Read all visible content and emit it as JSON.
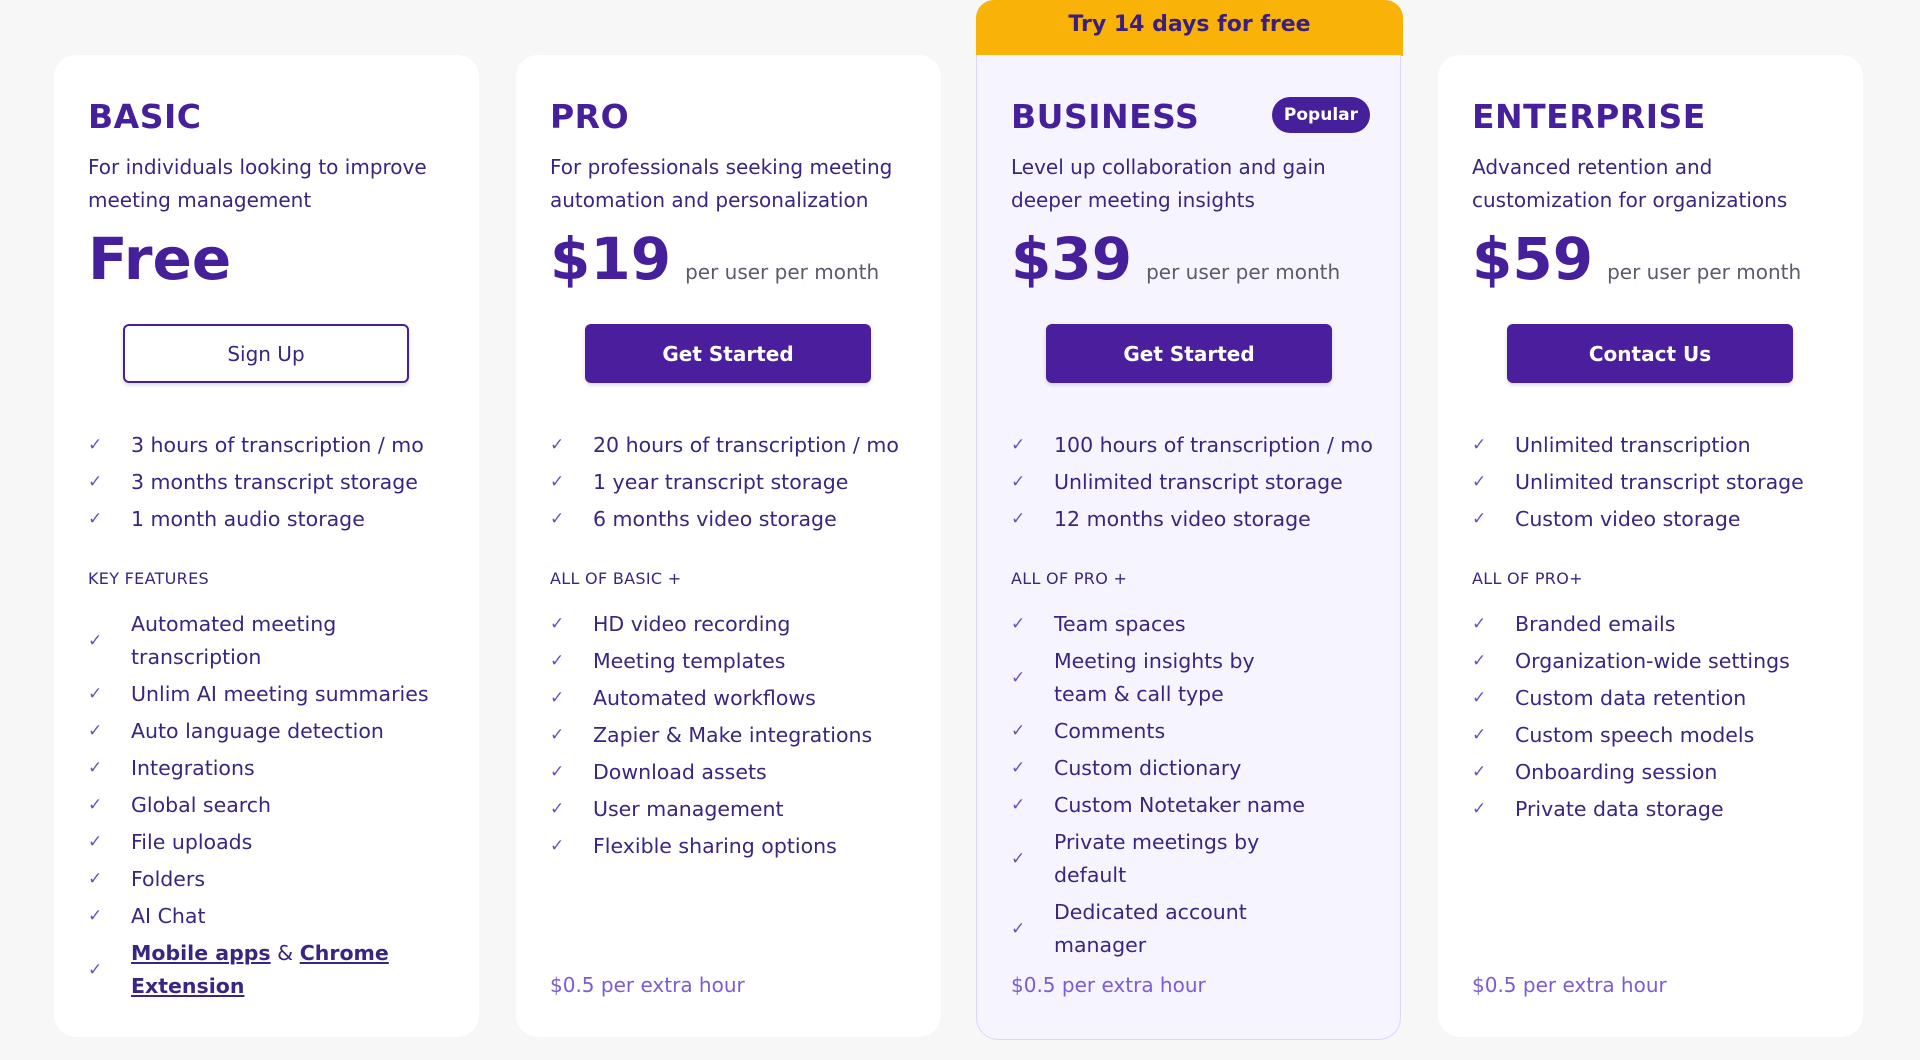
{
  "banner": "Try 14 days for free",
  "plans": [
    {
      "name": "BASIC",
      "desc": "For individuals looking to improve meeting management",
      "price": "Free",
      "per": "",
      "button": "Sign Up",
      "limits": [
        "3 hours of transcription / mo",
        "3 months transcript storage",
        "1 month audio storage"
      ],
      "section": "KEY FEATURES",
      "features": [
        "Automated meeting transcription",
        "Unlim AI meeting summaries",
        "Auto language detection",
        "Integrations",
        "Global search",
        "File uploads",
        "Folders",
        "AI Chat"
      ],
      "last_feature": {
        "link1": "Mobile apps",
        "amp": "&",
        "link2": "Chrome Extension"
      },
      "footer": ""
    },
    {
      "name": "PRO",
      "desc": "For professionals seeking meeting automation and personalization",
      "price": "$19",
      "per": "per user per month",
      "button": "Get Started",
      "limits": [
        "20 hours of transcription / mo",
        "1 year transcript storage",
        "6 months video storage"
      ],
      "section": "ALL OF BASIC +",
      "features": [
        "HD video recording",
        "Meeting templates",
        "Automated workflows",
        "Zapier & Make integrations",
        "Download assets",
        "User management",
        "Flexible sharing options"
      ],
      "footer": "$0.5 per extra hour"
    },
    {
      "name": "BUSINESS",
      "badge": "Popular",
      "desc": "Level up collaboration and gain deeper meeting insights",
      "price": "$39",
      "per": "per user per month",
      "button": "Get Started",
      "limits": [
        "100 hours of transcription / mo",
        "Unlimited transcript storage",
        "12 months video storage"
      ],
      "section": "ALL OF PRO +",
      "features": [
        "Team spaces",
        "Meeting insights by team & call type",
        "Comments",
        "Custom dictionary",
        "Custom Notetaker name",
        "Private meetings by default",
        "Dedicated account manager"
      ],
      "footer": "$0.5 per extra hour"
    },
    {
      "name": "ENTERPRISE",
      "desc": "Advanced retention and customization for organizations",
      "price": "$59",
      "per": "per user per month",
      "button": "Contact Us",
      "limits": [
        "Unlimited transcription",
        "Unlimited transcript storage",
        "Custom video storage"
      ],
      "section": "ALL OF PRO+",
      "features": [
        "Branded emails",
        "Organization-wide settings",
        "Custom data retention",
        "Custom speech models",
        "Onboarding session",
        "Private data storage"
      ],
      "footer": "$0.5 per extra hour"
    }
  ],
  "colors": {
    "accent": "#46209a",
    "banner": "#f9b208",
    "check": "#6d4fc2"
  }
}
